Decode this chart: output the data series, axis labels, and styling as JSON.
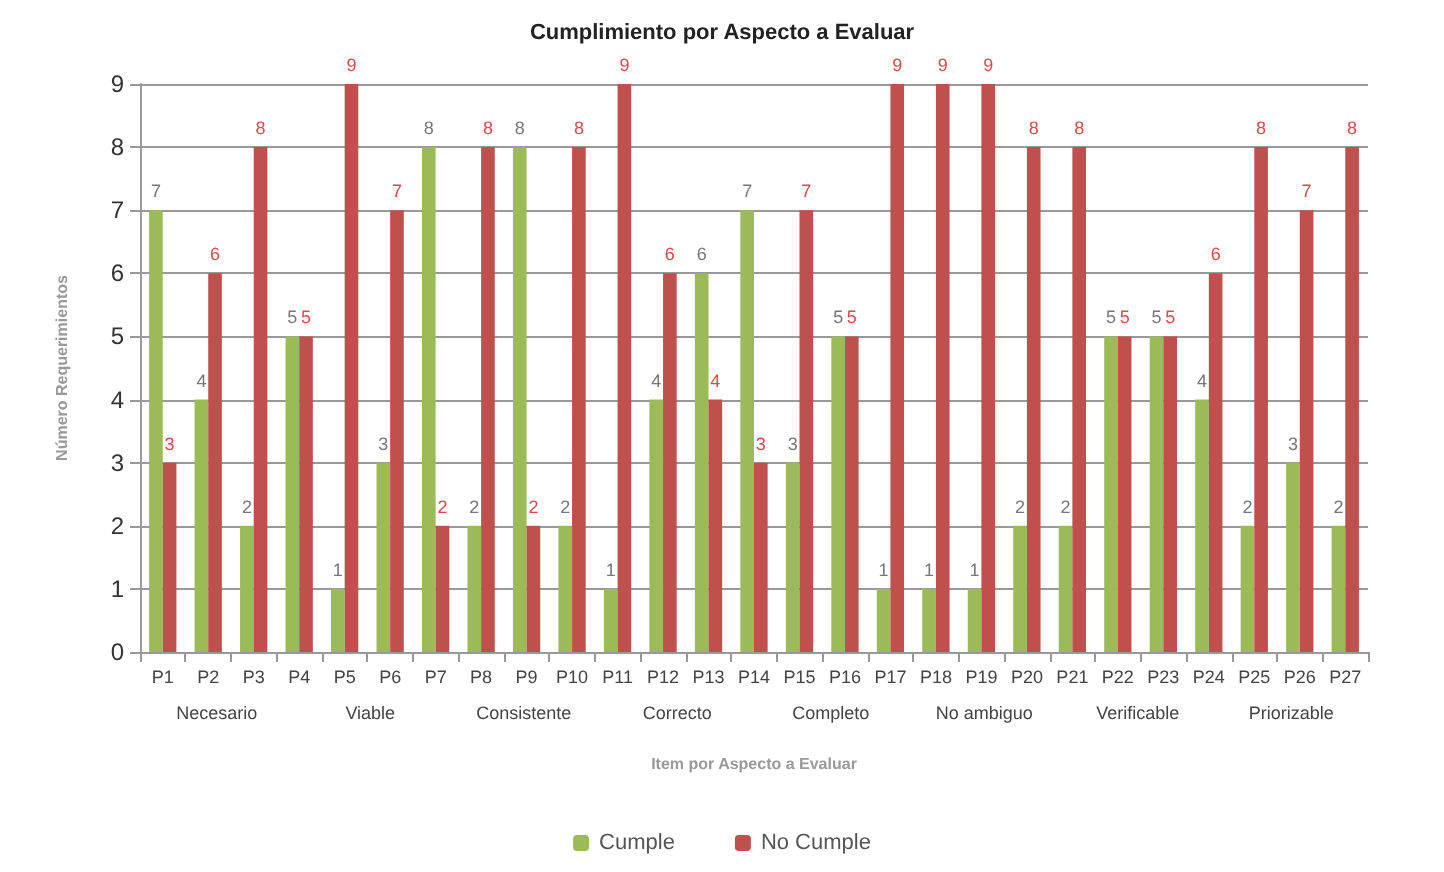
{
  "chart_data": {
    "type": "bar",
    "title": "Cumplimiento por Aspecto a Evaluar",
    "xlabel": "Item por Aspecto a Evaluar",
    "ylabel": "Número Requerimientos",
    "categories": [
      "P1",
      "P2",
      "P3",
      "P4",
      "P5",
      "P6",
      "P7",
      "P8",
      "P9",
      "P10",
      "P11",
      "P12",
      "P13",
      "P14",
      "P15",
      "P16",
      "P17",
      "P18",
      "P19",
      "P20",
      "P21",
      "P22",
      "P23",
      "P24",
      "P25",
      "P26",
      "P27"
    ],
    "series": [
      {
        "name": "Cumple",
        "color": "#9bbb59",
        "values": [
          7,
          4,
          2,
          5,
          1,
          3,
          8,
          2,
          8,
          2,
          1,
          4,
          6,
          7,
          3,
          5,
          1,
          1,
          1,
          2,
          2,
          5,
          5,
          4,
          2,
          3,
          2
        ]
      },
      {
        "name": "No Cumple",
        "color": "#c0504d",
        "values": [
          3,
          6,
          8,
          5,
          9,
          7,
          2,
          8,
          2,
          8,
          9,
          6,
          4,
          3,
          7,
          5,
          9,
          9,
          9,
          8,
          8,
          5,
          5,
          6,
          8,
          7,
          8
        ]
      }
    ],
    "annotations": [
      "Necesario",
      "Viable",
      "Consistente",
      "Correcto",
      "Completo",
      "No ambiguo",
      "Verificable",
      "Priorizable"
    ],
    "ylim": [
      0,
      9
    ],
    "yticks": [
      0,
      1,
      2,
      3,
      4,
      5,
      6,
      7,
      8,
      9
    ],
    "grid": "y",
    "legend": "bottom",
    "data_labels": true
  }
}
